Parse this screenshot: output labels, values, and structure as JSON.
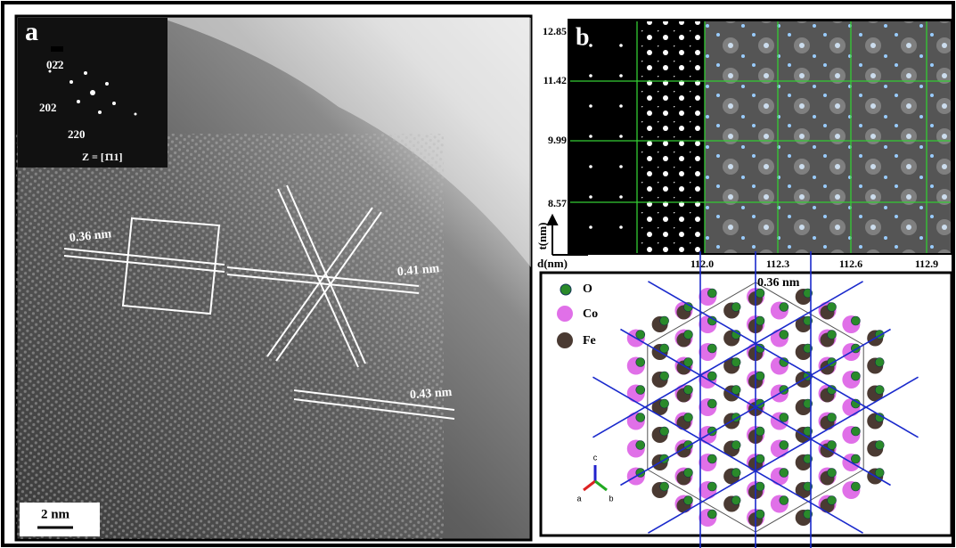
{
  "panel_a": {
    "label": "a",
    "fft": {
      "spots": [
        "02̄2",
        "202",
        "220"
      ],
      "zone_axis": "Z = [1̄11]"
    },
    "spacings": [
      "0.36 nm",
      "0.41 nm",
      "0.43 nm"
    ],
    "scale_bar": "2 nm"
  },
  "panel_b": {
    "label": "b",
    "y_axis": {
      "title": "t(nm)",
      "ticks": [
        "12.85",
        "11.42",
        "9.99",
        "8.57"
      ]
    },
    "x_axis": {
      "title": "d(nm)",
      "ticks": [
        "112.0",
        "112.3",
        "112.6",
        "112.9"
      ]
    }
  },
  "structure": {
    "legend": [
      "O",
      "Co",
      "Fe"
    ],
    "spacing": "0.36 nm",
    "axes": [
      "c",
      "a",
      "b"
    ]
  }
}
